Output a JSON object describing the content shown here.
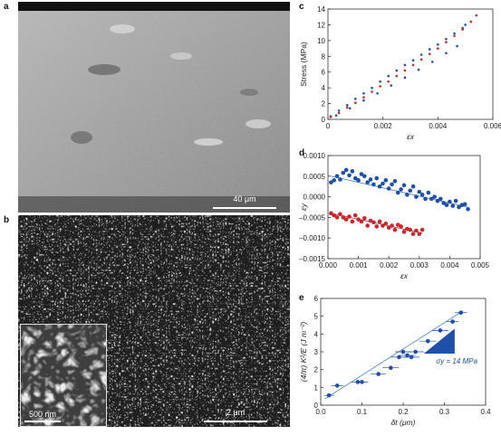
{
  "panels": {
    "a": {
      "letter": "a",
      "scale": "40 μm"
    },
    "b": {
      "letter": "b",
      "scale_main": "2 μm",
      "scale_inset": "500 nm"
    },
    "c": {
      "letter": "c",
      "xlabel": "εx",
      "ylabel": "Stress (MPa)"
    },
    "d": {
      "letter": "d",
      "xlabel": "εx",
      "ylabel": "εy"
    },
    "e": {
      "letter": "e",
      "xlabel": "δt (μm)",
      "ylabel": "(4/π) K²/E (J m⁻²)",
      "annotation": "σy = 14 MPa"
    }
  },
  "colors": {
    "blue": "#1f4fa8",
    "red": "#c8282e",
    "fit": "#4a86c8"
  },
  "chart_data": [
    {
      "id": "c",
      "type": "scatter",
      "title": "",
      "xlabel": "εx",
      "ylabel": "Stress (MPa)",
      "xlim": [
        0,
        0.006
      ],
      "ylim": [
        0,
        14
      ],
      "xticks": [
        "0",
        "0.002",
        "0.004",
        "0.006"
      ],
      "yticks": [
        "0",
        "2",
        "4",
        "6",
        "8",
        "10",
        "12",
        "14"
      ],
      "grid": false,
      "series": [
        {
          "color": "blue",
          "x": [
            0.0001,
            0.0004,
            0.0007,
            0.001,
            0.0013,
            0.0016,
            0.0019,
            0.0022,
            0.0025,
            0.0028,
            0.0031,
            0.0034,
            0.0037,
            0.004,
            0.0043,
            0.0046,
            0.0049,
            0.005
          ],
          "y": [
            0.4,
            1.1,
            1.8,
            2.6,
            3.3,
            4.0,
            4.8,
            5.5,
            6.2,
            6.9,
            7.5,
            8.2,
            8.9,
            9.5,
            10.2,
            10.9,
            11.6,
            12.0
          ]
        },
        {
          "color": "red",
          "x": [
            0.0001,
            0.0004,
            0.0007,
            0.001,
            0.0013,
            0.0016,
            0.0019,
            0.0022,
            0.0025,
            0.0028,
            0.0031,
            0.0034,
            0.0037,
            0.004,
            0.0043,
            0.0046,
            0.0049,
            0.0052,
            0.0054
          ],
          "y": [
            0.3,
            0.8,
            1.5,
            2.1,
            2.8,
            3.5,
            4.2,
            4.8,
            5.5,
            6.2,
            6.9,
            7.6,
            8.3,
            9.0,
            9.8,
            10.6,
            11.4,
            12.4,
            13.2
          ]
        },
        {
          "color": "blue",
          "x": [
            0.0003,
            0.0008,
            0.0013,
            0.0018,
            0.0023,
            0.0028,
            0.0033,
            0.0038,
            0.0043,
            0.0047
          ],
          "y": [
            0.5,
            1.4,
            2.4,
            3.3,
            4.3,
            5.3,
            6.3,
            7.3,
            8.4,
            9.3
          ]
        }
      ]
    },
    {
      "id": "d",
      "type": "scatter",
      "title": "",
      "xlabel": "εx",
      "ylabel": "εy",
      "xlim": [
        0,
        0.005
      ],
      "ylim": [
        -0.0015,
        0.001
      ],
      "xticks": [
        "0.000",
        "0.001",
        "0.002",
        "0.003",
        "0.004",
        "0.005"
      ],
      "yticks": [
        "0.0010",
        "0.0005",
        "0.0000",
        "–0.0005",
        "–0.0010",
        "–0.0015"
      ],
      "grid": false,
      "series": [
        {
          "color": "blue",
          "x": [
            0.0001,
            0.0002,
            0.0003,
            0.0004,
            0.0005,
            0.0006,
            0.0007,
            0.0008,
            0.0009,
            0.001,
            0.0011,
            0.0012,
            0.0013,
            0.0014,
            0.0015,
            0.0016,
            0.0017,
            0.0018,
            0.0019,
            0.002,
            0.0021,
            0.0022,
            0.0023,
            0.0024,
            0.0025,
            0.0026,
            0.0027,
            0.0028,
            0.0029,
            0.003,
            0.0031,
            0.0032,
            0.0033,
            0.0034,
            0.0035,
            0.0036,
            0.0037,
            0.0038,
            0.0039,
            0.004,
            0.0041,
            0.0042,
            0.0043,
            0.0044,
            0.0045,
            0.0046
          ],
          "y": [
            0.00035,
            0.0004,
            0.0005,
            0.00042,
            0.00058,
            0.00065,
            0.00052,
            0.00062,
            0.00045,
            0.0004,
            0.00055,
            0.0005,
            0.00035,
            0.00042,
            0.0003,
            0.00045,
            0.00025,
            0.00032,
            0.0004,
            0.0002,
            0.0003,
            0.00038,
            0.0001,
            0.00018,
            0.00028,
            5e-05,
            0.00015,
            0.00025,
            0.0,
            0.00012,
            5e-05,
            -5e-05,
            0.0001,
            -5e-05,
            0.0,
            -0.0001,
            -5e-05,
            -0.00015,
            -0.0002,
            -0.00012,
            -0.00022,
            -0.0001,
            -0.00025,
            -0.0002,
            -0.00018,
            -0.0003
          ]
        },
        {
          "color": "red",
          "x": [
            0.0001,
            0.0002,
            0.0003,
            0.0004,
            0.0005,
            0.0006,
            0.0007,
            0.0008,
            0.0009,
            0.001,
            0.0011,
            0.0012,
            0.0013,
            0.0014,
            0.0015,
            0.0016,
            0.0017,
            0.0018,
            0.0019,
            0.002,
            0.0021,
            0.0022,
            0.0023,
            0.0024,
            0.0025,
            0.0026,
            0.0027,
            0.0028,
            0.0029,
            0.003,
            0.0031
          ],
          "y": [
            -0.0004,
            -0.00045,
            -0.0005,
            -0.00042,
            -0.0005,
            -0.00055,
            -0.00048,
            -0.0006,
            -0.00045,
            -0.00055,
            -0.0006,
            -0.00052,
            -0.0007,
            -0.00058,
            -0.00062,
            -0.00072,
            -0.0006,
            -0.0007,
            -0.00065,
            -0.00075,
            -0.0007,
            -0.0008,
            -0.00068,
            -0.00072,
            -0.00085,
            -0.00078,
            -0.0008,
            -0.0009,
            -0.00082,
            -0.0009,
            -0.0008
          ]
        }
      ]
    },
    {
      "id": "e",
      "type": "scatter",
      "title": "",
      "xlabel": "δt (μm)",
      "ylabel": "(4/π) K²/E (J m⁻²)",
      "xlim": [
        0,
        0.4
      ],
      "ylim": [
        0,
        6
      ],
      "xticks": [
        "0.0",
        "0.1",
        "0.2",
        "0.3",
        "0.4"
      ],
      "yticks": [
        "0",
        "1",
        "2",
        "3",
        "4",
        "5",
        "6"
      ],
      "grid": false,
      "annotation": "σy = 14 MPa",
      "series": [
        {
          "color": "blue",
          "x": [
            0.02,
            0.04,
            0.09,
            0.1,
            0.14,
            0.17,
            0.19,
            0.2,
            0.21,
            0.22,
            0.23,
            0.26,
            0.29,
            0.32,
            0.34
          ],
          "y": [
            0.55,
            1.1,
            1.3,
            1.3,
            1.75,
            2.1,
            2.7,
            3.0,
            2.8,
            2.7,
            3.0,
            3.6,
            4.2,
            4.7,
            5.2
          ],
          "xerr": [
            0.012,
            0.015,
            0.015,
            0.015,
            0.018,
            0.02,
            0.02,
            0.02,
            0.02,
            0.02,
            0.02,
            0.02,
            0.02,
            0.015,
            0.015
          ]
        }
      ]
    }
  ]
}
